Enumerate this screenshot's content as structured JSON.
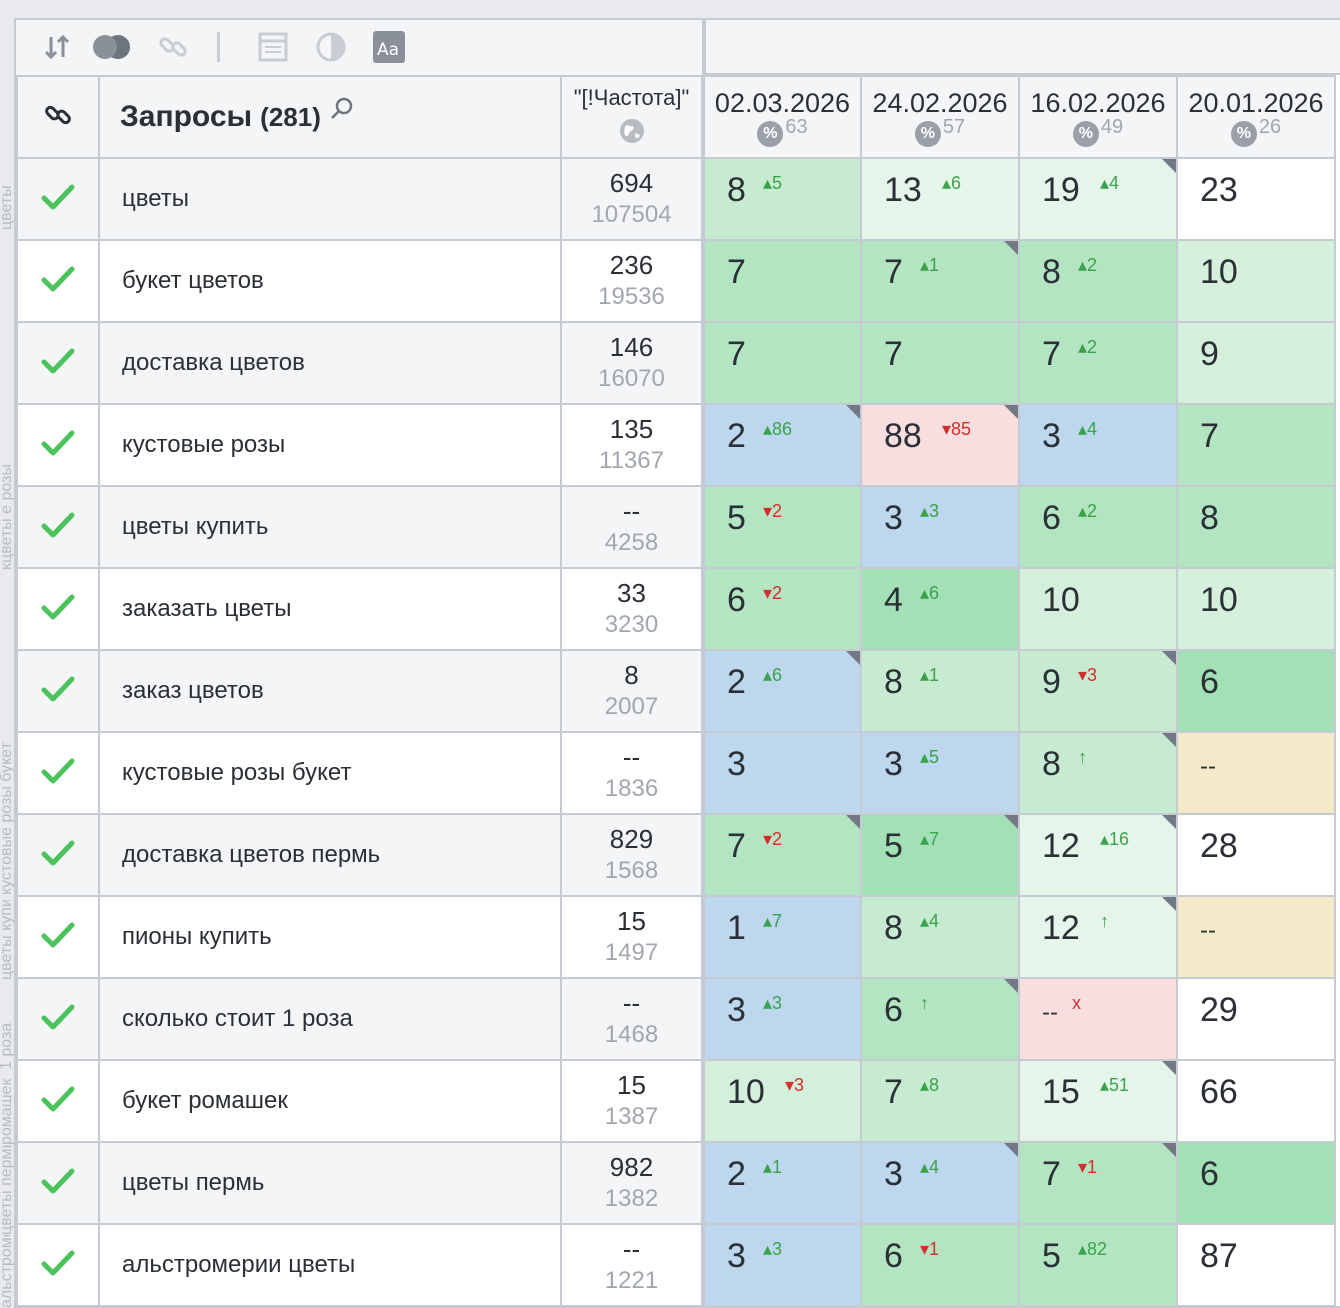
{
  "toolbar": {
    "icons": [
      "sort-icon",
      "toggle-circles-icon",
      "link-icon",
      "divider",
      "window-icon",
      "contrast-icon",
      "font-size-icon"
    ]
  },
  "header": {
    "queries_label": "Запросы",
    "queries_count": "(281)",
    "freq_label": "\"[!Частота]\"",
    "dates": [
      {
        "date": "02.03.2026",
        "pct": "63"
      },
      {
        "date": "24.02.2026",
        "pct": "57"
      },
      {
        "date": "16.02.2026",
        "pct": "49"
      },
      {
        "date": "20.01.2026",
        "pct": "26"
      }
    ]
  },
  "side_ghost": [
    "цветы",
    "кцветы е розы",
    "кустовые розы букет",
    "цветы купить",
    "1 роза",
    "ромашек",
    "цветы пермь",
    "альстромерии"
  ],
  "rows": [
    {
      "q": "цветы",
      "f1": "694",
      "f2": "107504",
      "p": [
        {
          "v": "8",
          "c": "5",
          "d": "up"
        },
        {
          "v": "13",
          "c": "6",
          "d": "up"
        },
        {
          "v": "19",
          "c": "4",
          "d": "up"
        },
        {
          "v": "23",
          "c": "",
          "d": ""
        }
      ]
    },
    {
      "q": "букет цветов",
      "f1": "236",
      "f2": "19536",
      "p": [
        {
          "v": "7",
          "c": "",
          "d": ""
        },
        {
          "v": "7",
          "c": "1",
          "d": "up"
        },
        {
          "v": "8",
          "c": "2",
          "d": "up"
        },
        {
          "v": "10",
          "c": "",
          "d": ""
        }
      ]
    },
    {
      "q": "доставка цветов",
      "f1": "146",
      "f2": "16070",
      "p": [
        {
          "v": "7",
          "c": "",
          "d": ""
        },
        {
          "v": "7",
          "c": "",
          "d": ""
        },
        {
          "v": "7",
          "c": "2",
          "d": "up"
        },
        {
          "v": "9",
          "c": "",
          "d": ""
        }
      ]
    },
    {
      "q": "кустовые розы",
      "f1": "135",
      "f2": "11367",
      "p": [
        {
          "v": "2",
          "c": "86",
          "d": "up"
        },
        {
          "v": "88",
          "c": "85",
          "d": "down"
        },
        {
          "v": "3",
          "c": "4",
          "d": "up"
        },
        {
          "v": "7",
          "c": "",
          "d": ""
        }
      ]
    },
    {
      "q": "цветы купить",
      "f1": "--",
      "f2": "4258",
      "p": [
        {
          "v": "5",
          "c": "2",
          "d": "down"
        },
        {
          "v": "3",
          "c": "3",
          "d": "up"
        },
        {
          "v": "6",
          "c": "2",
          "d": "up"
        },
        {
          "v": "8",
          "c": "",
          "d": ""
        }
      ]
    },
    {
      "q": "заказать цветы",
      "f1": "33",
      "f2": "3230",
      "p": [
        {
          "v": "6",
          "c": "2",
          "d": "down"
        },
        {
          "v": "4",
          "c": "6",
          "d": "up"
        },
        {
          "v": "10",
          "c": "",
          "d": ""
        },
        {
          "v": "10",
          "c": "",
          "d": ""
        }
      ]
    },
    {
      "q": "заказ цветов",
      "f1": "8",
      "f2": "2007",
      "p": [
        {
          "v": "2",
          "c": "6",
          "d": "up"
        },
        {
          "v": "8",
          "c": "1",
          "d": "up"
        },
        {
          "v": "9",
          "c": "3",
          "d": "down"
        },
        {
          "v": "6",
          "c": "",
          "d": ""
        }
      ]
    },
    {
      "q": "кустовые розы букет",
      "f1": "--",
      "f2": "1836",
      "p": [
        {
          "v": "3",
          "c": "",
          "d": ""
        },
        {
          "v": "3",
          "c": "5",
          "d": "up"
        },
        {
          "v": "8",
          "c": "↑",
          "d": "up"
        },
        {
          "v": "--",
          "c": "",
          "d": ""
        }
      ]
    },
    {
      "q": "доставка цветов пермь",
      "f1": "829",
      "f2": "1568",
      "p": [
        {
          "v": "7",
          "c": "2",
          "d": "down"
        },
        {
          "v": "5",
          "c": "7",
          "d": "up"
        },
        {
          "v": "12",
          "c": "16",
          "d": "up"
        },
        {
          "v": "28",
          "c": "",
          "d": ""
        }
      ]
    },
    {
      "q": "пионы купить",
      "f1": "15",
      "f2": "1497",
      "p": [
        {
          "v": "1",
          "c": "7",
          "d": "up"
        },
        {
          "v": "8",
          "c": "4",
          "d": "up"
        },
        {
          "v": "12",
          "c": "↑",
          "d": "up"
        },
        {
          "v": "--",
          "c": "",
          "d": ""
        }
      ]
    },
    {
      "q": "сколько стоит 1 роза",
      "f1": "--",
      "f2": "1468",
      "p": [
        {
          "v": "3",
          "c": "3",
          "d": "up"
        },
        {
          "v": "6",
          "c": "↑",
          "d": "up"
        },
        {
          "v": "--",
          "c": "x",
          "d": "down"
        },
        {
          "v": "29",
          "c": "",
          "d": ""
        }
      ]
    },
    {
      "q": "букет ромашек",
      "f1": "15",
      "f2": "1387",
      "p": [
        {
          "v": "10",
          "c": "3",
          "d": "down"
        },
        {
          "v": "7",
          "c": "8",
          "d": "up"
        },
        {
          "v": "15",
          "c": "51",
          "d": "up"
        },
        {
          "v": "66",
          "c": "",
          "d": ""
        }
      ]
    },
    {
      "q": "цветы пермь",
      "f1": "982",
      "f2": "1382",
      "p": [
        {
          "v": "2",
          "c": "1",
          "d": "up"
        },
        {
          "v": "3",
          "c": "4",
          "d": "up"
        },
        {
          "v": "7",
          "c": "1",
          "d": "down"
        },
        {
          "v": "6",
          "c": "",
          "d": ""
        }
      ]
    },
    {
      "q": "альстромерии цветы",
      "f1": "--",
      "f2": "1221",
      "p": [
        {
          "v": "3",
          "c": "3",
          "d": "up"
        },
        {
          "v": "6",
          "c": "1",
          "d": "down"
        },
        {
          "v": "5",
          "c": "82",
          "d": "up"
        },
        {
          "v": "87",
          "c": "",
          "d": ""
        }
      ]
    }
  ]
}
